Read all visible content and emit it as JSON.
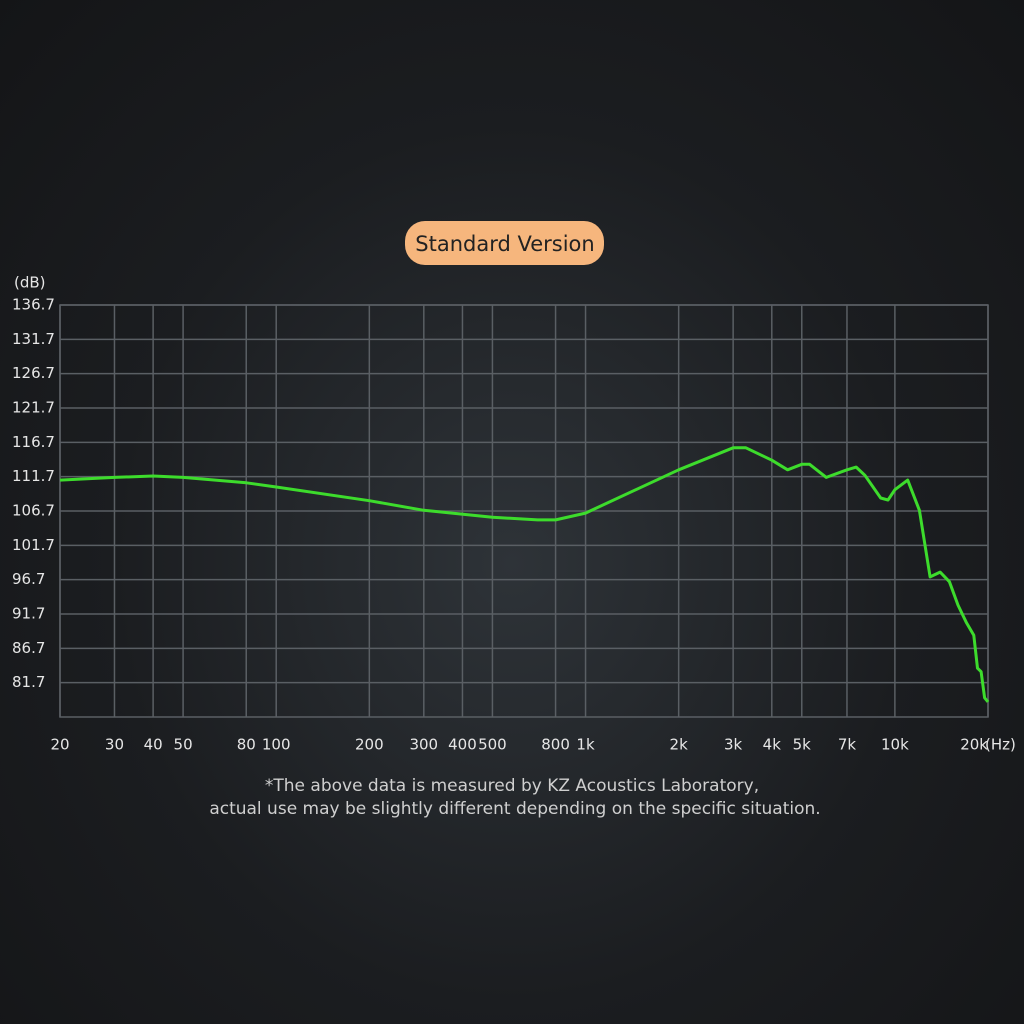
{
  "chart_data": {
    "type": "line",
    "title": "Standard Version",
    "y_label": "(dB)",
    "x_label": "(Hz)",
    "log_x": true,
    "grid": true,
    "xlim": [
      20,
      20000
    ],
    "ylim": [
      76.7,
      136.7
    ],
    "xticks": [
      20,
      30,
      40,
      50,
      80,
      100,
      200,
      300,
      400,
      500,
      800,
      {
        "value": 1000,
        "label": "1k"
      },
      {
        "value": 2000,
        "label": "2k"
      },
      {
        "value": 3000,
        "label": "3k"
      },
      {
        "value": 4000,
        "label": "4k"
      },
      {
        "value": 5000,
        "label": "5k"
      },
      {
        "value": 7000,
        "label": "7k"
      },
      {
        "value": 10000,
        "label": "10k"
      },
      {
        "value": 20000,
        "label": "20k"
      }
    ],
    "yticks": [
      136.7,
      131.7,
      126.7,
      121.7,
      116.7,
      111.7,
      106.7,
      101.7,
      96.7,
      91.7,
      86.7,
      81.7
    ],
    "x": [
      20,
      30,
      40,
      50,
      80,
      100,
      200,
      300,
      500,
      700,
      800,
      1000,
      2000,
      3000,
      3300,
      4000,
      4500,
      5000,
      5300,
      6000,
      7000,
      7500,
      8000,
      9000,
      9500,
      10000,
      11000,
      12000,
      13000,
      14000,
      15000,
      16000,
      17000,
      18000,
      18500,
      19000,
      19500,
      20000
    ],
    "series": [
      {
        "name": "Standard Version",
        "color": "#3ddc2c",
        "values": [
          111.2,
          111.6,
          111.8,
          111.6,
          110.8,
          110.2,
          108.2,
          106.8,
          105.8,
          105.4,
          105.4,
          106.4,
          112.7,
          115.9,
          115.9,
          114.1,
          112.7,
          113.5,
          113.5,
          111.6,
          112.7,
          113.1,
          111.9,
          108.6,
          108.3,
          109.8,
          111.2,
          106.8,
          97.1,
          97.8,
          96.4,
          93.0,
          90.5,
          88.6,
          83.8,
          83.3,
          79.5,
          78.9
        ]
      }
    ],
    "footnote": [
      "*The above data is measured by KZ Acoustics Laboratory,",
      "actual use may be slightly different depending on the specific situation."
    ]
  }
}
